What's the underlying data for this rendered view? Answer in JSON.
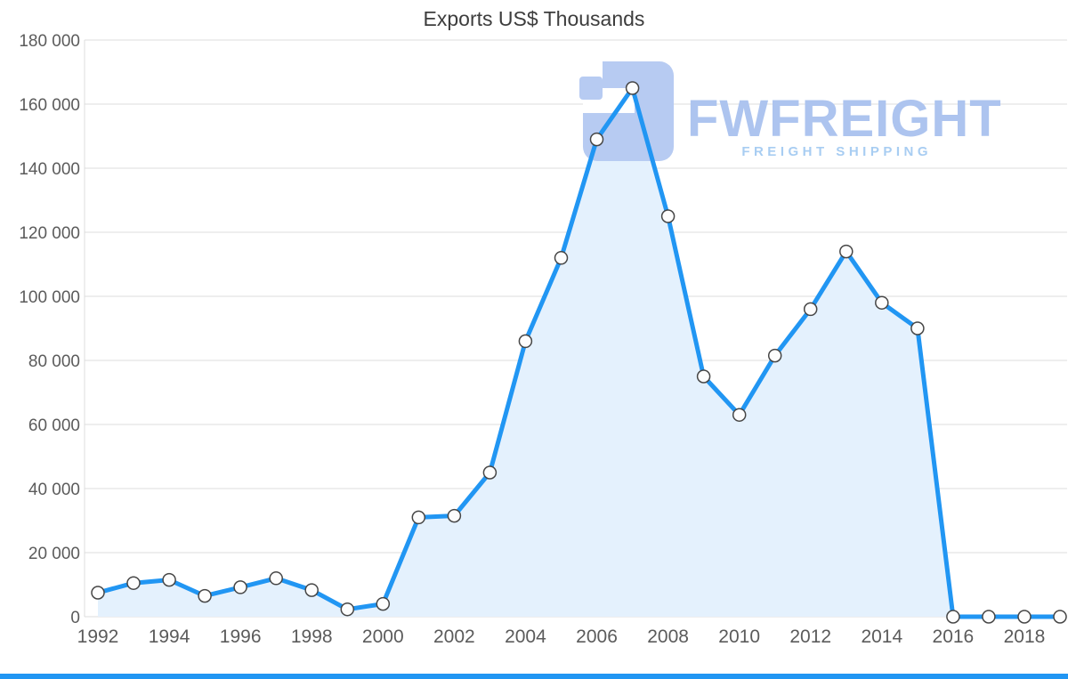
{
  "chart_data": {
    "type": "area",
    "title": "Exports US$ Thousands",
    "x": [
      1992,
      1993,
      1994,
      1995,
      1996,
      1997,
      1998,
      1999,
      2000,
      2001,
      2002,
      2003,
      2004,
      2005,
      2006,
      2007,
      2008,
      2009,
      2010,
      2011,
      2012,
      2013,
      2014,
      2015,
      2016,
      2017,
      2018,
      2019
    ],
    "series": [
      {
        "name": "Exports US$ Thousands",
        "values": [
          7500,
          10500,
          11500,
          6500,
          9200,
          12000,
          8300,
          2300,
          4000,
          31000,
          31500,
          45000,
          86000,
          112000,
          149000,
          165000,
          125000,
          75000,
          63000,
          81500,
          96000,
          114000,
          98000,
          90000,
          0,
          0,
          0,
          0
        ]
      }
    ],
    "ylim": [
      0,
      180000
    ],
    "ytick_step": 20000,
    "ytick_labels": [
      "0",
      "20 000",
      "40 000",
      "60 000",
      "80 000",
      "100 000",
      "120 000",
      "140 000",
      "160 000",
      "180 000"
    ],
    "xtick_start": 1992,
    "xtick_end": 2018,
    "xtick_step": 2,
    "grid": "horizontal",
    "legend": "none",
    "colors": {
      "line": "#2196f3",
      "area": "#e4f1fd",
      "marker_fill": "#fdfdfd",
      "marker_stroke": "#464646",
      "grid": "#dcdcdc",
      "axis_text": "#5b5b5b"
    }
  },
  "watermark": {
    "brand": "FWFREIGHT",
    "tagline": "FREIGHT SHIPPING",
    "glyph_color": "#b7cbf2",
    "brand_color": "#adc4ef",
    "tagline_color": "#a8cdf2"
  },
  "footer": {
    "accent_color": "#2196f3"
  }
}
